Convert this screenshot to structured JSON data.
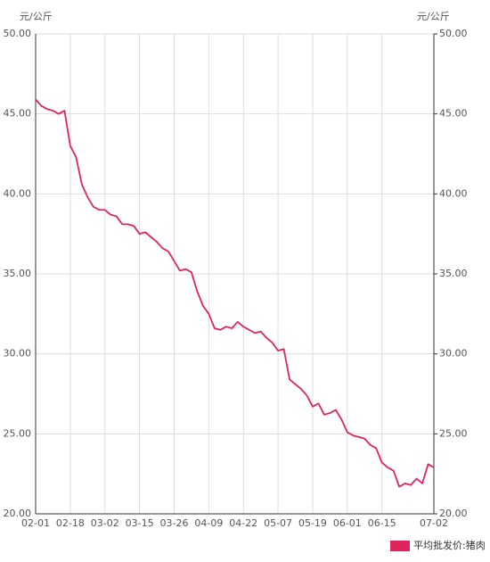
{
  "chart_data": {
    "type": "line",
    "y_label": "元/公斤",
    "y2_label": "元/公斤",
    "categories": [
      "02-01",
      null,
      null,
      null,
      null,
      null,
      "02-18",
      null,
      null,
      null,
      null,
      null,
      "03-02",
      null,
      null,
      null,
      null,
      null,
      "03-15",
      null,
      null,
      null,
      null,
      null,
      "03-26",
      null,
      null,
      null,
      null,
      null,
      "04-09",
      null,
      null,
      null,
      null,
      null,
      "04-22",
      null,
      null,
      null,
      null,
      null,
      "05-07",
      null,
      null,
      null,
      null,
      null,
      "05-19",
      null,
      null,
      null,
      null,
      null,
      "06-01",
      null,
      null,
      null,
      null,
      null,
      "06-15",
      null,
      null,
      null,
      null,
      null,
      null,
      null,
      null,
      "07-02"
    ],
    "series": [
      {
        "name": "平均批发价:猪肉",
        "color": "#e0245e",
        "values": [
          45.9,
          45.5,
          45.3,
          45.2,
          45.0,
          45.2,
          43.0,
          42.3,
          40.6,
          39.8,
          39.2,
          39.0,
          39.0,
          38.7,
          38.6,
          38.1,
          38.1,
          38.0,
          37.5,
          37.6,
          37.3,
          37.0,
          36.6,
          36.4,
          35.8,
          35.2,
          35.3,
          35.1,
          33.9,
          33.0,
          32.5,
          31.6,
          31.5,
          31.7,
          31.6,
          32.0,
          31.7,
          31.5,
          31.3,
          31.4,
          31.0,
          30.7,
          30.2,
          30.3,
          28.4,
          28.1,
          27.8,
          27.4,
          26.7,
          26.9,
          26.2,
          26.3,
          26.5,
          25.9,
          25.1,
          24.9,
          24.8,
          24.7,
          24.3,
          24.1,
          23.2,
          22.9,
          22.7,
          21.7,
          21.9,
          21.8,
          22.2,
          21.9,
          23.1,
          22.9
        ]
      }
    ],
    "ylim": [
      20,
      50
    ],
    "yticks": [
      {
        "value": 20,
        "label": "20.00"
      },
      {
        "value": 25,
        "label": "25.00"
      },
      {
        "value": 30,
        "label": "30.00"
      },
      {
        "value": 35,
        "label": "35.00"
      },
      {
        "value": 40,
        "label": "40.00"
      },
      {
        "value": 45,
        "label": "45.00"
      },
      {
        "value": 50,
        "label": "50.00"
      }
    ],
    "y2lim": [
      20,
      50
    ],
    "y2ticks": [
      {
        "value": 20,
        "label": "20.00"
      },
      {
        "value": 25,
        "label": "25.00"
      },
      {
        "value": 30,
        "label": "30.00"
      },
      {
        "value": 35,
        "label": "35.00"
      },
      {
        "value": 40,
        "label": "40.00"
      },
      {
        "value": 45,
        "label": "45.00"
      },
      {
        "value": 50,
        "label": "50.00"
      }
    ],
    "grid": true,
    "legend": "bottom-right"
  }
}
